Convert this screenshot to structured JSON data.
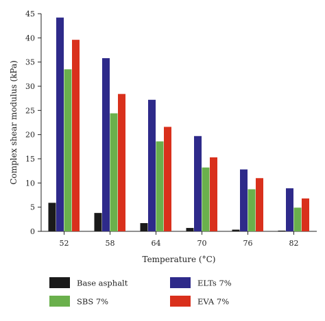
{
  "chart_data": {
    "type": "bar",
    "xlabel": "Temperature (°C)",
    "ylabel": "Complex shear modulus (kPa)",
    "ylim": [
      0,
      45
    ],
    "yticks": [
      0,
      5,
      10,
      15,
      20,
      25,
      30,
      35,
      40,
      45
    ],
    "categories": [
      "52",
      "58",
      "64",
      "70",
      "76",
      "82"
    ],
    "series": [
      {
        "name": "Base asphalt",
        "color": "#1a1a1a",
        "values": [
          5.9,
          3.8,
          1.7,
          0.7,
          0.35,
          0.15
        ]
      },
      {
        "name": "ELTs 7%",
        "color": "#2e2a8a",
        "values": [
          44.2,
          35.8,
          27.2,
          19.7,
          12.8,
          8.9
        ]
      },
      {
        "name": "SBS 7%",
        "color": "#6ab04c",
        "values": [
          33.5,
          24.4,
          18.6,
          13.2,
          8.7,
          4.9
        ]
      },
      {
        "name": "EVA 7%",
        "color": "#d9301c",
        "values": [
          39.6,
          28.4,
          21.6,
          15.3,
          11.0,
          6.8
        ]
      }
    ],
    "grid": false,
    "legend_position": "bottom"
  }
}
